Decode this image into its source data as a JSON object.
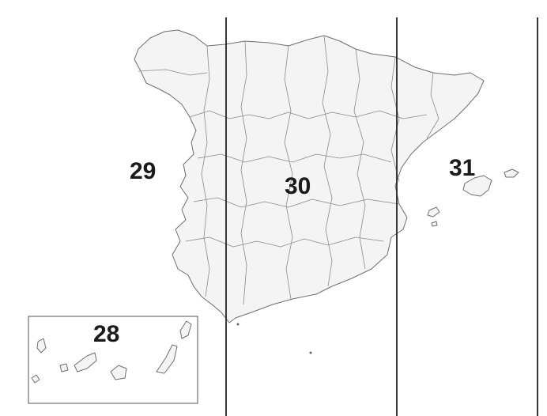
{
  "map": {
    "zones": [
      {
        "number": "28"
      },
      {
        "number": "29"
      },
      {
        "number": "30"
      },
      {
        "number": "31"
      }
    ]
  }
}
